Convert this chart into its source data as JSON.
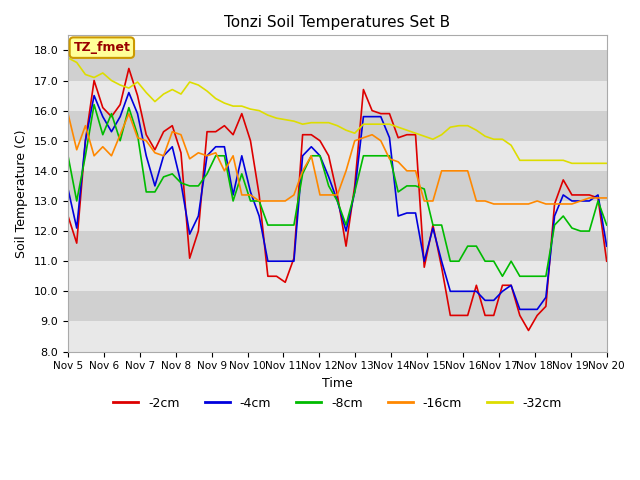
{
  "title": "Tonzi Soil Temperatures Set B",
  "xlabel": "Time",
  "ylabel": "Soil Temperature (C)",
  "ylim": [
    8.0,
    18.5
  ],
  "yticks": [
    8.0,
    9.0,
    10.0,
    11.0,
    12.0,
    13.0,
    14.0,
    15.0,
    16.0,
    17.0,
    18.0
  ],
  "x_labels": [
    "Nov 5",
    "Nov 6",
    "Nov 7",
    "Nov 8",
    "Nov 9",
    "Nov 10",
    "Nov 11",
    "Nov 12",
    "Nov 13",
    "Nov 14",
    "Nov 15",
    "Nov 16",
    "Nov 17",
    "Nov 18",
    "Nov 19",
    "Nov 20"
  ],
  "colors": {
    "-2cm": "#dd0000",
    "-4cm": "#0000dd",
    "-8cm": "#00bb00",
    "-16cm": "#ff8800",
    "-32cm": "#dddd00"
  },
  "legend_label": "TZ_fmet",
  "legend_bg": "#ffff99",
  "legend_border": "#cc9900",
  "figure_bg": "#ffffff",
  "band_light": "#e8e8e8",
  "band_dark": "#d0d0d0",
  "series": {
    "-2cm": [
      12.5,
      11.6,
      15.0,
      17.0,
      16.1,
      15.8,
      16.2,
      17.4,
      16.5,
      15.2,
      14.7,
      15.3,
      15.5,
      14.6,
      11.1,
      12.0,
      15.3,
      15.3,
      15.5,
      15.2,
      15.9,
      15.0,
      13.2,
      10.5,
      10.5,
      10.3,
      11.1,
      15.2,
      15.2,
      15.0,
      14.5,
      13.2,
      11.5,
      13.5,
      16.7,
      16.0,
      15.9,
      15.9,
      15.1,
      15.2,
      15.2,
      10.8,
      12.2,
      10.8,
      9.2,
      9.2,
      9.2,
      10.2,
      9.2,
      9.2,
      10.2,
      10.2,
      9.2,
      8.7,
      9.2,
      9.5,
      12.9,
      13.7,
      13.2,
      13.2,
      13.2,
      13.1,
      11.0
    ],
    "-4cm": [
      13.4,
      12.1,
      15.0,
      16.5,
      15.8,
      15.3,
      15.8,
      16.6,
      15.9,
      14.5,
      13.5,
      14.5,
      14.8,
      13.6,
      11.9,
      12.5,
      14.5,
      14.8,
      14.8,
      13.2,
      14.5,
      13.3,
      12.5,
      11.0,
      11.0,
      11.0,
      11.0,
      14.5,
      14.8,
      14.5,
      13.8,
      13.0,
      12.0,
      13.3,
      15.8,
      15.8,
      15.8,
      15.1,
      12.5,
      12.6,
      12.6,
      11.0,
      12.1,
      11.0,
      10.0,
      10.0,
      10.0,
      10.0,
      9.7,
      9.7,
      10.0,
      10.2,
      9.4,
      9.4,
      9.4,
      9.8,
      12.5,
      13.2,
      13.0,
      13.0,
      13.0,
      13.2,
      11.5
    ],
    "-8cm": [
      14.5,
      13.0,
      14.5,
      16.2,
      15.2,
      15.9,
      15.0,
      16.1,
      15.2,
      13.3,
      13.3,
      13.8,
      13.9,
      13.6,
      13.5,
      13.5,
      13.9,
      14.5,
      14.5,
      13.0,
      13.9,
      13.0,
      13.0,
      12.2,
      12.2,
      12.2,
      12.2,
      13.9,
      14.5,
      14.5,
      13.5,
      13.0,
      12.2,
      13.3,
      14.5,
      14.5,
      14.5,
      14.5,
      13.3,
      13.5,
      13.5,
      13.4,
      12.2,
      12.2,
      11.0,
      11.0,
      11.5,
      11.5,
      11.0,
      11.0,
      10.5,
      11.0,
      10.5,
      10.5,
      10.5,
      10.5,
      12.2,
      12.5,
      12.1,
      12.0,
      12.0,
      13.0,
      12.2
    ],
    "-16cm": [
      15.9,
      14.7,
      15.5,
      14.5,
      14.8,
      14.5,
      15.2,
      15.9,
      15.1,
      15.0,
      14.6,
      14.5,
      15.3,
      15.2,
      14.4,
      14.6,
      14.5,
      14.6,
      14.0,
      14.5,
      13.2,
      13.2,
      13.0,
      13.0,
      13.0,
      13.0,
      13.2,
      14.0,
      14.5,
      13.2,
      13.2,
      13.2,
      14.0,
      15.0,
      15.1,
      15.2,
      15.0,
      14.4,
      14.3,
      14.0,
      14.0,
      13.0,
      13.0,
      14.0,
      14.0,
      14.0,
      14.0,
      13.0,
      13.0,
      12.9,
      12.9,
      12.9,
      12.9,
      12.9,
      13.0,
      12.9,
      12.9,
      12.9,
      12.9,
      13.0,
      13.1,
      13.1,
      13.1
    ],
    "-32cm": [
      17.75,
      17.6,
      17.2,
      17.1,
      17.25,
      17.0,
      16.85,
      16.75,
      16.95,
      16.6,
      16.3,
      16.55,
      16.7,
      16.55,
      16.95,
      16.85,
      16.65,
      16.4,
      16.25,
      16.15,
      16.15,
      16.05,
      16.0,
      15.85,
      15.75,
      15.7,
      15.65,
      15.55,
      15.6,
      15.6,
      15.6,
      15.5,
      15.35,
      15.25,
      15.55,
      15.55,
      15.55,
      15.55,
      15.45,
      15.35,
      15.25,
      15.15,
      15.05,
      15.2,
      15.45,
      15.5,
      15.5,
      15.35,
      15.15,
      15.05,
      15.05,
      14.85,
      14.35,
      14.35,
      14.35,
      14.35,
      14.35,
      14.35,
      14.25,
      14.25,
      14.25,
      14.25,
      14.25
    ]
  }
}
